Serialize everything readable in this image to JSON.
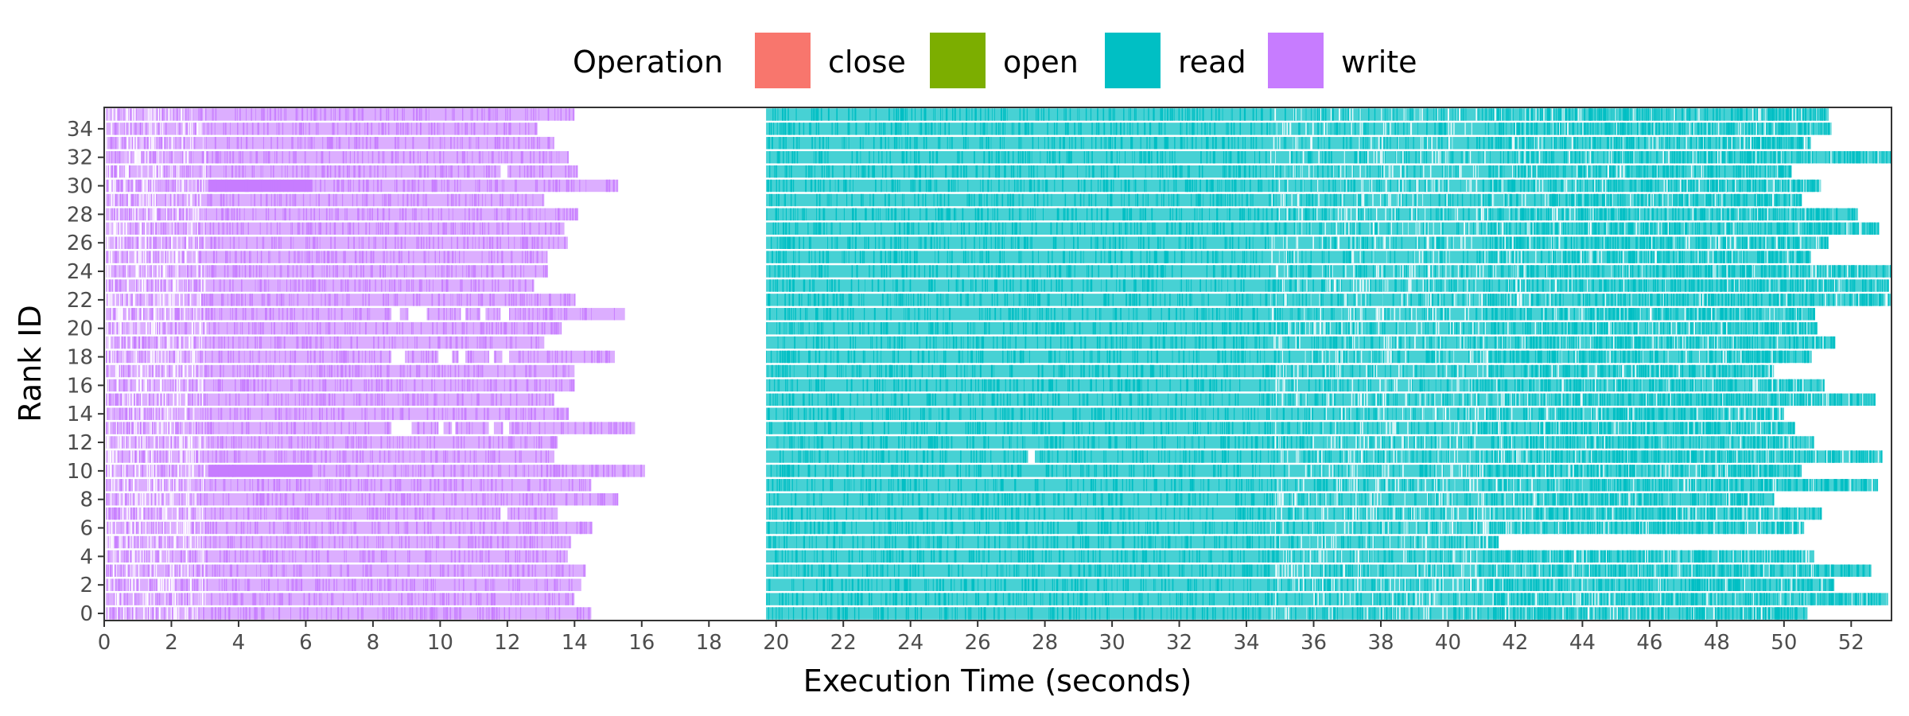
{
  "chart_data": {
    "type": "timeline",
    "xlabel": "Execution Time (seconds)",
    "ylabel": "Rank ID",
    "xlim": [
      0,
      53.2
    ],
    "ylim": [
      -0.5,
      35.5
    ],
    "x_ticks": [
      0,
      2,
      4,
      6,
      8,
      10,
      12,
      14,
      16,
      18,
      20,
      22,
      24,
      26,
      28,
      30,
      32,
      34,
      36,
      38,
      40,
      42,
      44,
      46,
      48,
      50,
      52
    ],
    "y_ticks": [
      0,
      2,
      4,
      6,
      8,
      10,
      12,
      14,
      16,
      18,
      20,
      22,
      24,
      26,
      28,
      30,
      32,
      34
    ],
    "legend": {
      "title": "Operation",
      "placement": "top",
      "entries": [
        {
          "name": "close",
          "color": "#F8766D"
        },
        {
          "name": "open",
          "color": "#7CAE00"
        },
        {
          "name": "read",
          "color": "#00BFC4"
        },
        {
          "name": "write",
          "color": "#C77CFF"
        }
      ]
    },
    "ranks": [
      0,
      1,
      2,
      3,
      4,
      5,
      6,
      7,
      8,
      9,
      10,
      11,
      12,
      13,
      14,
      15,
      16,
      17,
      18,
      19,
      20,
      21,
      22,
      23,
      24,
      25,
      26,
      27,
      28,
      29,
      30,
      31,
      32,
      33,
      34,
      35
    ],
    "write_end": [
      14.5,
      14.0,
      14.2,
      14.3,
      13.8,
      13.9,
      14.5,
      13.5,
      15.3,
      14.5,
      16.1,
      13.4,
      13.5,
      15.8,
      13.8,
      13.4,
      14.0,
      14.0,
      15.2,
      13.1,
      13.6,
      15.5,
      14.0,
      12.8,
      13.2,
      13.2,
      13.8,
      13.7,
      14.1,
      13.1,
      15.3,
      14.1,
      13.8,
      13.4,
      12.9,
      14.0
    ],
    "write_gaps": [
      {
        "rank": 30,
        "dense": [
          3.1,
          6.2
        ]
      },
      {
        "rank": 10,
        "dense": [
          3.1,
          6.2
        ]
      },
      {
        "rank": 21,
        "gaps": [
          [
            8.55,
            8.8
          ],
          [
            9.05,
            9.6
          ],
          [
            10.6,
            10.75
          ],
          [
            11.2,
            11.35
          ],
          [
            11.8,
            12.05
          ]
        ]
      },
      {
        "rank": 18,
        "gaps": [
          [
            8.55,
            8.95
          ],
          [
            9.95,
            10.35
          ],
          [
            10.55,
            10.75
          ],
          [
            11.45,
            11.6
          ],
          [
            11.85,
            12.05
          ]
        ]
      },
      {
        "rank": 13,
        "gaps": [
          [
            8.55,
            9.15
          ],
          [
            9.95,
            10.1
          ],
          [
            10.35,
            10.45
          ],
          [
            11.45,
            11.6
          ],
          [
            11.85,
            12.05
          ]
        ]
      },
      {
        "rank": 31,
        "gaps": [
          [
            11.8,
            12.0
          ]
        ]
      },
      {
        "rank": 7,
        "gaps": [
          [
            11.8,
            12.0
          ]
        ]
      }
    ],
    "read_start": 19.7,
    "read_end": [
      50.7,
      53.1,
      51.5,
      52.6,
      50.9,
      41.5,
      50.6,
      51.1,
      49.7,
      52.8,
      50.5,
      52.9,
      50.9,
      50.3,
      50.0,
      52.7,
      51.2,
      49.7,
      50.8,
      51.5,
      51.0,
      50.9,
      53.2,
      53.1,
      53.2,
      50.8,
      51.3,
      52.8,
      52.2,
      50.5,
      51.1,
      50.2,
      53.2,
      50.8,
      51.4,
      51.3
    ],
    "read_gaps": [
      {
        "rank": 11,
        "gaps": [
          [
            27.5,
            27.7
          ]
        ]
      }
    ]
  }
}
